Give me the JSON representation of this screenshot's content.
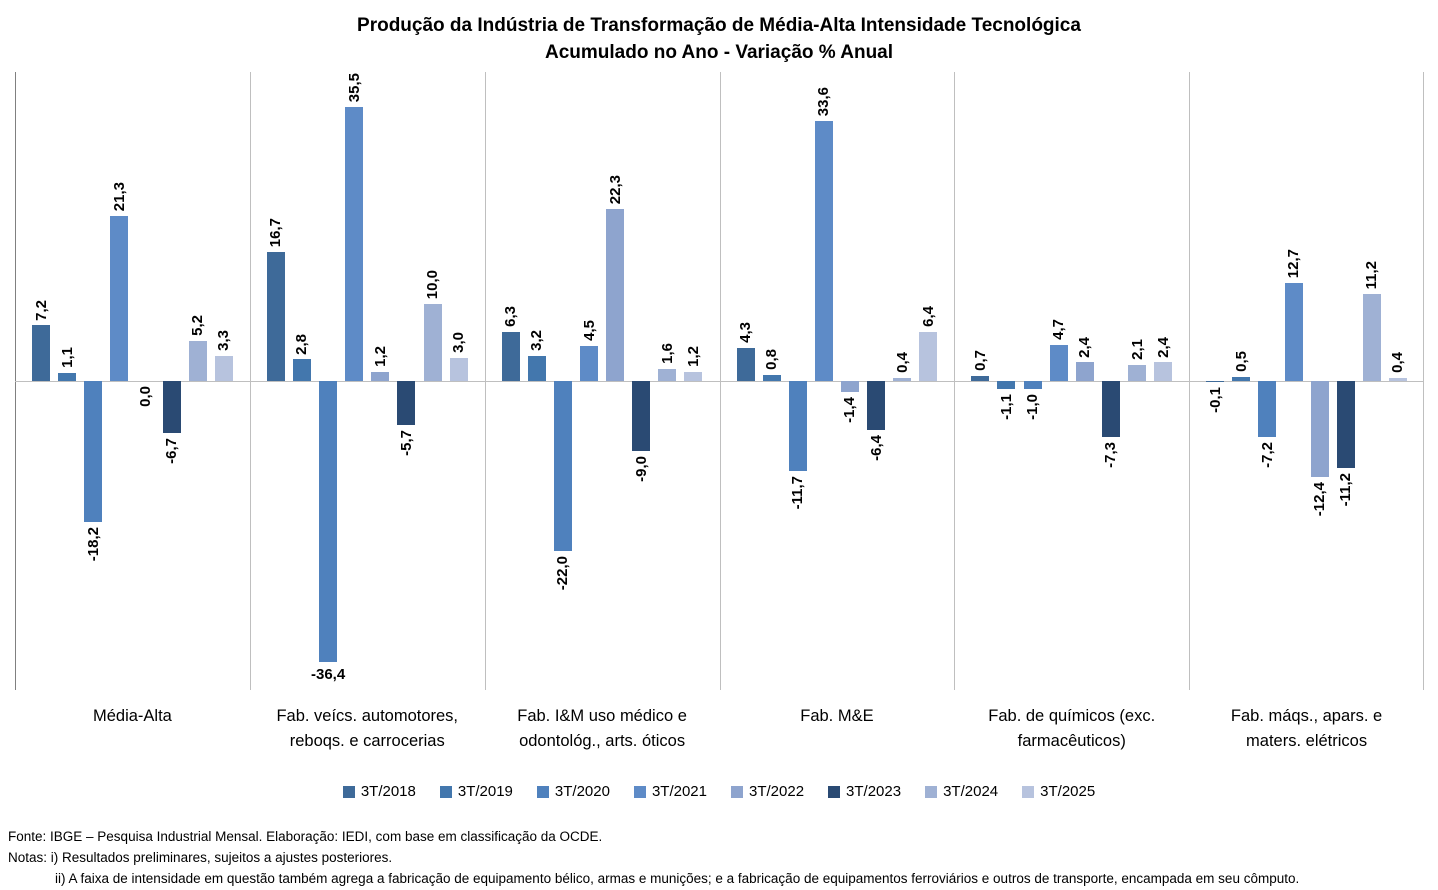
{
  "title": {
    "line1": "Produção da Indústria de Transformação de Média-Alta Intensidade Tecnológica",
    "line2": "Acumulado no Ano - Variação % Anual"
  },
  "chart_data": {
    "type": "bar",
    "title": "Produção da Indústria de Transformação de Média-Alta Intensidade Tecnológica — Acumulado no Ano - Variação % Anual",
    "categories": [
      "Média-Alta",
      "Fab. veícs. automotores,\nreboqs. e carrocerias",
      "Fab. I&M uso médico e\nodontológ., arts. óticos",
      "Fab. M&E",
      "Fab. de químicos (exc.\nfarmacêuticos)",
      "Fab. máqs., apars. e\nmaters. elétricos"
    ],
    "series": [
      {
        "name": "3T/2018",
        "color": "#3e6a99",
        "values": [
          7.2,
          16.7,
          6.3,
          4.3,
          0.7,
          -0.1
        ]
      },
      {
        "name": "3T/2019",
        "color": "#4377ad",
        "values": [
          1.1,
          2.8,
          3.2,
          0.8,
          -1.1,
          0.5
        ]
      },
      {
        "name": "3T/2020",
        "color": "#4f81bd",
        "values": [
          -18.2,
          -36.4,
          -22.0,
          -11.7,
          -1.0,
          -7.2
        ]
      },
      {
        "name": "3T/2021",
        "color": "#5e8bc7",
        "values": [
          21.3,
          35.5,
          4.5,
          33.6,
          4.7,
          12.7
        ]
      },
      {
        "name": "3T/2022",
        "color": "#8ea4ce",
        "values": [
          0.0,
          1.2,
          22.3,
          -1.4,
          2.4,
          -12.4
        ]
      },
      {
        "name": "3T/2023",
        "color": "#2a4a73",
        "values": [
          -6.7,
          -5.7,
          -9.0,
          -6.4,
          -7.3,
          -11.2
        ]
      },
      {
        "name": "3T/2024",
        "color": "#9fb1d4",
        "values": [
          5.2,
          10.0,
          1.6,
          0.4,
          2.1,
          11.2
        ]
      },
      {
        "name": "3T/2025",
        "color": "#b7c3de",
        "values": [
          3.3,
          3.0,
          1.2,
          6.4,
          2.4,
          0.4
        ]
      }
    ],
    "ylim": [
      -40,
      40
    ],
    "grid": "vertical category separators and horizontal zero line only, no y-axis tick labels",
    "legend_position": "bottom",
    "value_labels": "all bars labelled, decimal comma, rotated 90° (reading bottom-up)",
    "special_labels": [
      {
        "series_index": 2,
        "category_index": 1,
        "orientation": "horizontal",
        "text": "-36,4"
      }
    ]
  },
  "footer": {
    "source": "Fonte: IBGE – Pesquisa Industrial Mensal. Elaboração: IEDI, com base em classificação da OCDE.",
    "note1": "Notas: i) Resultados preliminares, sujeitos a ajustes posteriores.",
    "note2": "ii) A faixa de intensidade em questão também agrega a fabricação de equipamento bélico, armas e munições; e a fabricação de equipamentos ferroviários e outros de transporte, encampada em seu cômputo."
  }
}
